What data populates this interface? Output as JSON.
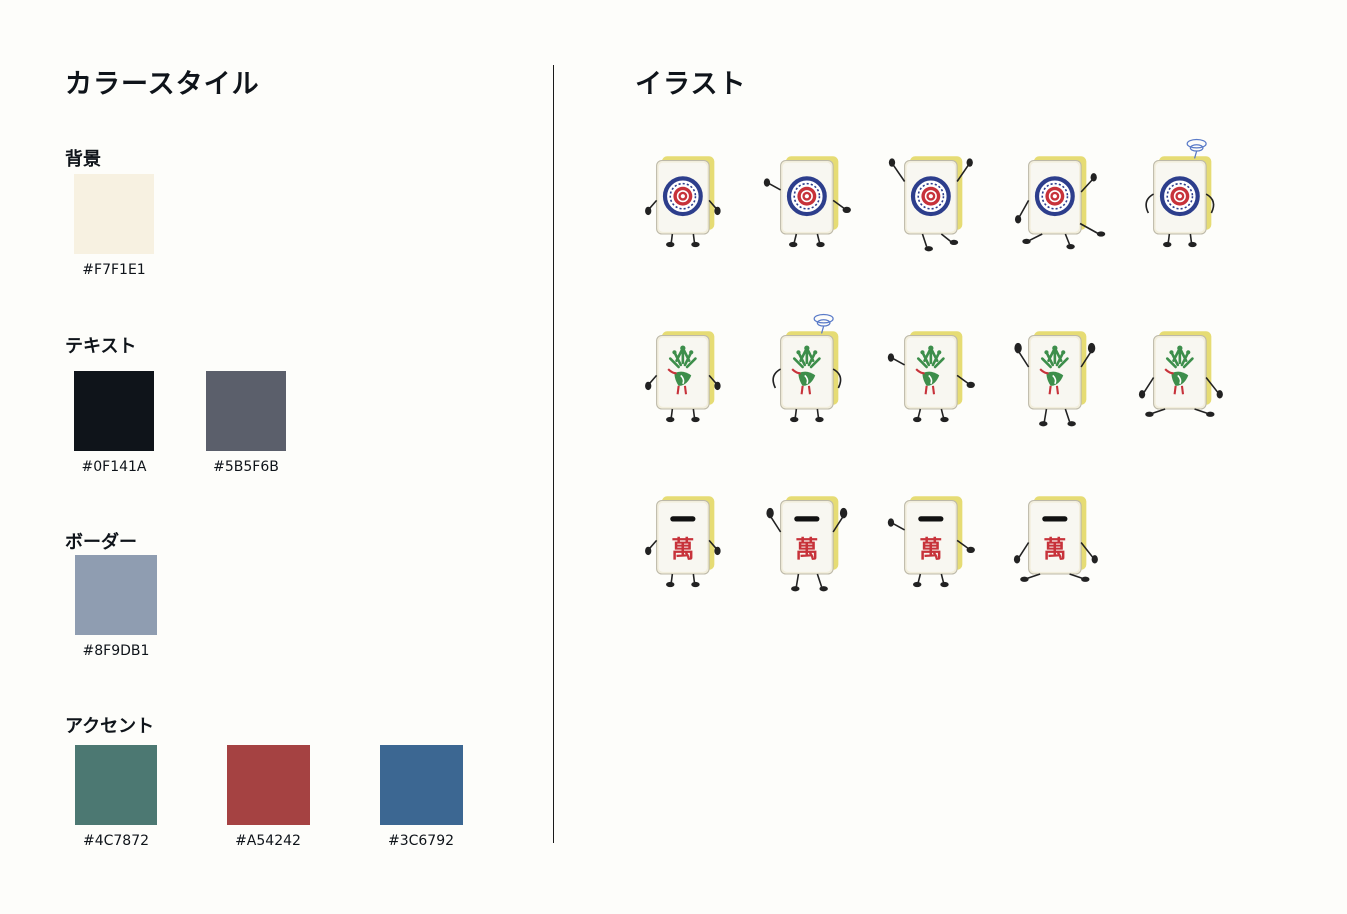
{
  "color_style": {
    "title": "カラースタイル",
    "sections": [
      {
        "label": "背景",
        "swatches": [
          {
            "hex": "#F7F1E1",
            "code": "#F7F1E1"
          }
        ]
      },
      {
        "label": "テキスト",
        "swatches": [
          {
            "hex": "#0F141A",
            "code": "#0F141A"
          },
          {
            "hex": "#5B5F6B",
            "code": "#5B5F6B"
          }
        ]
      },
      {
        "label": "ボーダー",
        "swatches": [
          {
            "hex": "#8F9DB1",
            "code": "#8F9DB1"
          }
        ]
      },
      {
        "label": "アクセント",
        "swatches": [
          {
            "hex": "#4C7872",
            "code": "#4C7872"
          },
          {
            "hex": "#A54242",
            "code": "#A54242"
          },
          {
            "hex": "#3C6792",
            "code": "#3C6792"
          }
        ]
      }
    ]
  },
  "illustrations": {
    "title": "イラスト",
    "rows": [
      {
        "tile": "circle-tile",
        "poses": [
          "standing",
          "waving",
          "jumping",
          "dancing",
          "confused"
        ]
      },
      {
        "tile": "bird-tile",
        "poses": [
          "standing",
          "confused",
          "waving",
          "cheering",
          "sitting"
        ]
      },
      {
        "tile": "wan-tile",
        "poses": [
          "standing",
          "cheering",
          "waving",
          "sitting"
        ]
      }
    ],
    "wan_char_top": "一",
    "wan_char_bottom": "萬"
  }
}
